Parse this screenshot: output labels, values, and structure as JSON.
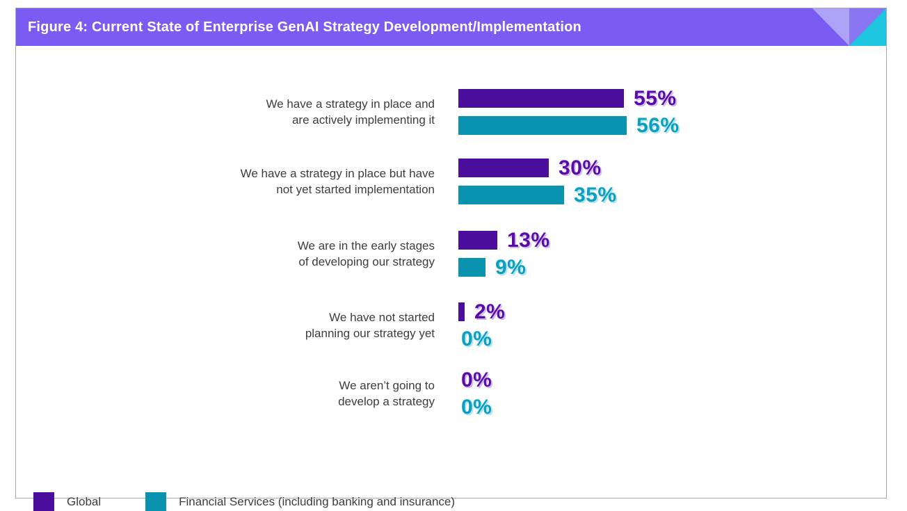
{
  "figure": {
    "title": "Figure 4: Current State of Enterprise GenAI Strategy Development/Implementation"
  },
  "theme": {
    "header_bg": "#7b5cf3",
    "accent_lavender": "#aca3f7",
    "accent_corner_purple": "#8a76f3",
    "accent_teal": "#1fc6e0",
    "frame_border": "#ababab",
    "text_color": "#3d3d3d"
  },
  "chart_data": {
    "type": "bar",
    "orientation": "horizontal",
    "title": "Figure 4: Current State of Enterprise GenAI Strategy Development/Implementation",
    "categories": [
      "We have a strategy in place and\nare actively implementing it",
      "We have a strategy in place but have\nnot yet started implementation",
      "We are in the early stages\nof developing our strategy",
      "We have not started\nplanning our strategy yet",
      "We aren’t going to\ndevelop a strategy"
    ],
    "series": [
      {
        "name": "Global",
        "color": "#4b0e9d",
        "label_color": "#5a0ba8",
        "label_shadow": "#cdbcf0",
        "values": [
          55,
          30,
          13,
          2,
          0
        ]
      },
      {
        "name": "Financial Services (including banking and insurance)",
        "color": "#0a93ae",
        "label_color": "#0c9fc0",
        "label_shadow": "#aee3ef",
        "values": [
          56,
          35,
          9,
          0,
          0
        ]
      }
    ],
    "value_suffix": "%",
    "value_labels_shown": true,
    "axes_visible": false,
    "grid": false,
    "xlim": [
      0,
      100
    ],
    "legend_position": "bottom-left"
  }
}
